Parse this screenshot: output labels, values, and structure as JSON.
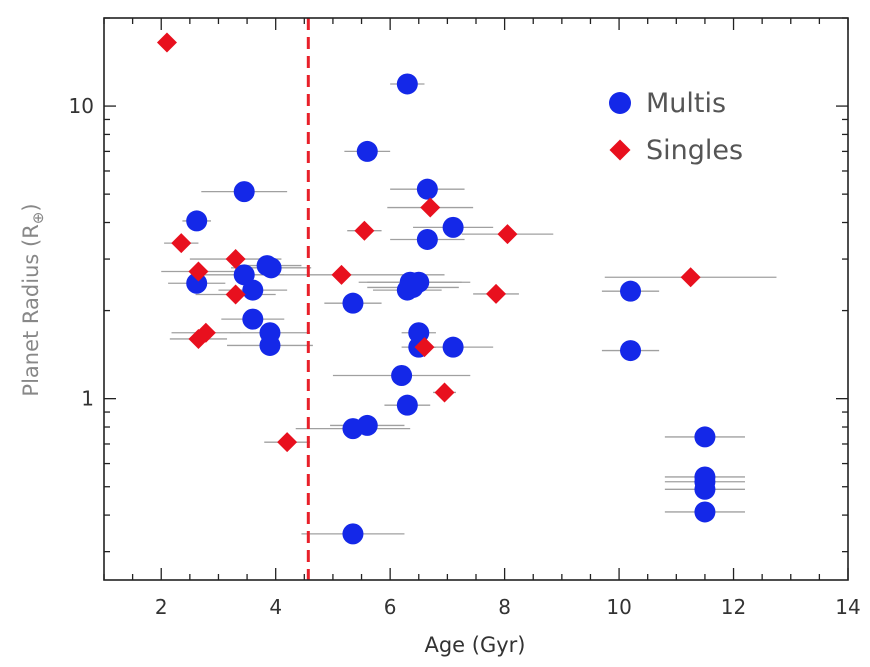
{
  "chart_data": {
    "type": "scatter",
    "xlabel": "Age (Gyr)",
    "ylabel_main": "Planet Radius (R",
    "ylabel_sub": "⊕",
    "ylabel_close": ")",
    "xlim": [
      1,
      14
    ],
    "ylim": [
      0.24,
      20
    ],
    "y_scale": "log",
    "x_ticks": [
      2,
      4,
      6,
      8,
      10,
      12,
      14
    ],
    "x_tick_labels": [
      "2",
      "4",
      "6",
      "8",
      "10",
      "12",
      "14"
    ],
    "y_ticks": [
      1,
      10
    ],
    "y_tick_labels": [
      "1",
      "10"
    ],
    "reference_line": {
      "x": 4.57,
      "style": "dashed",
      "color": "#e8202a"
    },
    "legend": {
      "position": "top-right",
      "entries": [
        "Multis",
        "Singles"
      ]
    },
    "colors": {
      "multis": "#1428e8",
      "singles": "#e8101e",
      "errorbar": "#a0a0a0",
      "axis": "#222222"
    },
    "series": [
      {
        "name": "Multis",
        "marker": "circle",
        "points": [
          {
            "x": 6.3,
            "y": 11.9,
            "xerr": 0.3
          },
          {
            "x": 5.6,
            "y": 7.0,
            "xerr": 0.4
          },
          {
            "x": 3.45,
            "y": 5.1,
            "xerr": 0.75
          },
          {
            "x": 6.65,
            "y": 5.2,
            "xerr": 0.65
          },
          {
            "x": 2.62,
            "y": 4.05,
            "xerr": 0.25
          },
          {
            "x": 7.1,
            "y": 3.85,
            "xerr": 0.7
          },
          {
            "x": 6.65,
            "y": 3.5,
            "xerr": 0.65
          },
          {
            "x": 3.85,
            "y": 2.85,
            "xerr": 0.6
          },
          {
            "x": 3.92,
            "y": 2.8,
            "xerr": 0.7
          },
          {
            "x": 3.45,
            "y": 2.65,
            "xerr": 0.7
          },
          {
            "x": 2.62,
            "y": 2.48,
            "xerr": 0.5
          },
          {
            "x": 6.35,
            "y": 2.5,
            "xerr": 0.9
          },
          {
            "x": 6.5,
            "y": 2.5,
            "xerr": 0.9
          },
          {
            "x": 6.4,
            "y": 2.4,
            "xerr": 0.8
          },
          {
            "x": 6.3,
            "y": 2.35,
            "xerr": 0.6
          },
          {
            "x": 3.6,
            "y": 2.35,
            "xerr": 0.6
          },
          {
            "x": 10.2,
            "y": 2.33,
            "xerr": 0.5
          },
          {
            "x": 5.35,
            "y": 2.12,
            "xerr": 0.5
          },
          {
            "x": 3.6,
            "y": 1.87,
            "xerr": 0.55
          },
          {
            "x": 3.9,
            "y": 1.68,
            "xerr": 0.7
          },
          {
            "x": 6.5,
            "y": 1.68,
            "xerr": 0.3
          },
          {
            "x": 3.9,
            "y": 1.52,
            "xerr": 0.75
          },
          {
            "x": 6.5,
            "y": 1.5,
            "xerr": 0.3
          },
          {
            "x": 7.1,
            "y": 1.5,
            "xerr": 0.7
          },
          {
            "x": 10.2,
            "y": 1.46,
            "xerr": 0.5
          },
          {
            "x": 6.2,
            "y": 1.2,
            "xerr": 1.2
          },
          {
            "x": 6.3,
            "y": 0.95,
            "xerr": 0.4
          },
          {
            "x": 5.6,
            "y": 0.81,
            "xerr": 0.65
          },
          {
            "x": 5.35,
            "y": 0.79,
            "xerr": 1.0
          },
          {
            "x": 11.5,
            "y": 0.74,
            "xerr": 0.7
          },
          {
            "x": 11.5,
            "y": 0.54,
            "xerr": 0.7
          },
          {
            "x": 11.5,
            "y": 0.52,
            "xerr": 0.7
          },
          {
            "x": 11.5,
            "y": 0.49,
            "xerr": 0.7
          },
          {
            "x": 11.5,
            "y": 0.41,
            "xerr": 0.7
          },
          {
            "x": 5.35,
            "y": 0.345,
            "xerr": 0.9
          }
        ]
      },
      {
        "name": "Singles",
        "marker": "diamond",
        "points": [
          {
            "x": 2.1,
            "y": 16.5,
            "xerr": 0.1
          },
          {
            "x": 6.7,
            "y": 4.5,
            "xerr": 0.75
          },
          {
            "x": 5.55,
            "y": 3.75,
            "xerr": 0.3
          },
          {
            "x": 8.05,
            "y": 3.65,
            "xerr": 0.8
          },
          {
            "x": 2.35,
            "y": 3.4,
            "xerr": 0.3
          },
          {
            "x": 3.3,
            "y": 3.0,
            "xerr": 0.8
          },
          {
            "x": 2.65,
            "y": 2.72,
            "xerr": 0.65
          },
          {
            "x": 5.15,
            "y": 2.65,
            "xerr": 1.8
          },
          {
            "x": 11.25,
            "y": 2.6,
            "xerr": 1.5
          },
          {
            "x": 3.3,
            "y": 2.27,
            "xerr": 0.7
          },
          {
            "x": 7.85,
            "y": 2.28,
            "xerr": 0.4
          },
          {
            "x": 2.78,
            "y": 1.68,
            "xerr": 0.6
          },
          {
            "x": 2.65,
            "y": 1.6,
            "xerr": 0.5
          },
          {
            "x": 6.6,
            "y": 1.5,
            "xerr": 0.2
          },
          {
            "x": 6.95,
            "y": 1.05,
            "xerr": 0.2
          },
          {
            "x": 4.2,
            "y": 0.71,
            "xerr": 0.4
          }
        ]
      }
    ]
  }
}
